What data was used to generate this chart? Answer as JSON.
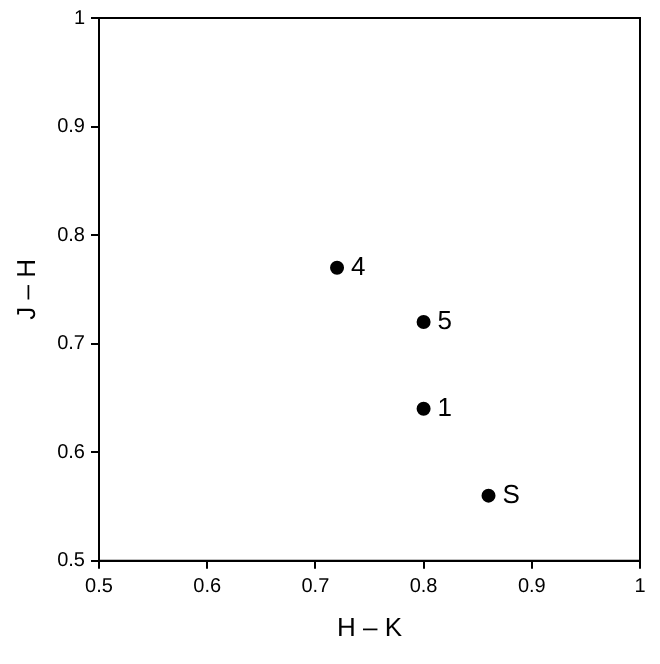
{
  "chart_data": {
    "type": "scatter",
    "xlabel": "H – K",
    "ylabel": "J – H",
    "x": [
      0.72,
      0.8,
      0.8,
      0.86
    ],
    "values": [
      0.77,
      0.72,
      0.64,
      0.56
    ],
    "color": "#000000",
    "marker": "circle",
    "xlim": [
      0.5,
      1
    ],
    "xticks": [
      0.5,
      0.6,
      0.7,
      0.8,
      0.9,
      1
    ],
    "ylim": [
      0.5,
      1
    ],
    "yticks": [
      0.5,
      0.6,
      0.7,
      0.8,
      0.9,
      1
    ],
    "grid": false,
    "legend": false,
    "annotations": [
      {
        "text": "4",
        "x": 0.72,
        "y": 0.77
      },
      {
        "text": "5",
        "x": 0.8,
        "y": 0.72
      },
      {
        "text": "1",
        "x": 0.8,
        "y": 0.64
      },
      {
        "text": "S",
        "x": 0.86,
        "y": 0.56
      }
    ]
  }
}
